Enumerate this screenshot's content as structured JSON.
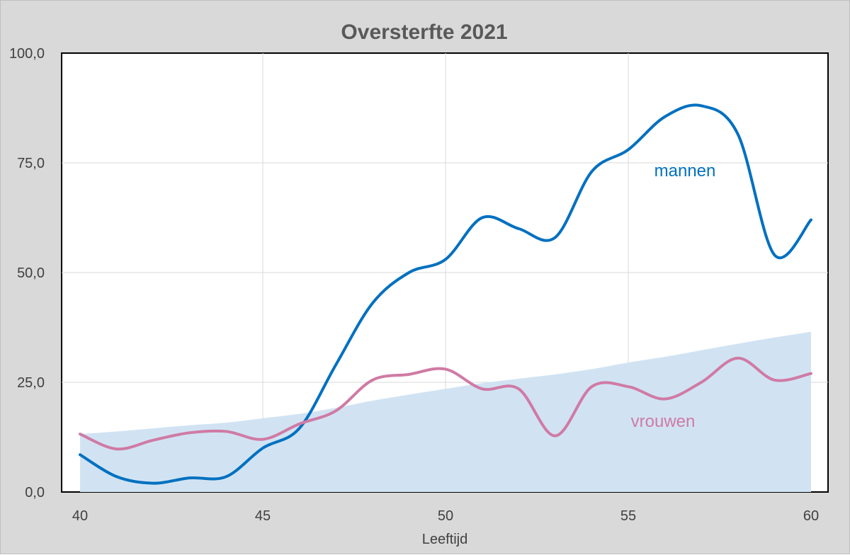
{
  "chart_data": {
    "type": "line",
    "title": "Oversterfte 2021",
    "xlabel": "Leeftijd",
    "ylabel": "",
    "xlim": [
      40,
      60
    ],
    "ylim": [
      0,
      100
    ],
    "x_ticks": [
      "40",
      "45",
      "50",
      "55",
      "60"
    ],
    "x_tick_values": [
      40,
      45,
      50,
      55,
      60
    ],
    "y_ticks": [
      "0,0",
      "25,0",
      "50,0",
      "75,0",
      "100,0"
    ],
    "y_tick_values": [
      0,
      25,
      50,
      75,
      100
    ],
    "grid": true,
    "area": {
      "x": [
        40,
        41,
        42,
        43,
        44,
        45,
        46,
        47,
        48,
        49,
        50,
        51,
        52,
        53,
        54,
        55,
        56,
        57,
        58,
        59,
        60
      ],
      "values": [
        13.2,
        13.8,
        14.5,
        15.2,
        15.8,
        16.8,
        17.8,
        19.2,
        20.8,
        22.2,
        23.5,
        24.8,
        25.8,
        26.8,
        28.0,
        29.5,
        30.8,
        32.3,
        33.8,
        35.2,
        36.5
      ]
    },
    "series": [
      {
        "name": "mannen",
        "color": "#0070c0",
        "x": [
          40,
          41,
          42,
          43,
          44,
          45,
          46,
          47,
          48,
          49,
          50,
          51,
          52,
          53,
          54,
          55,
          56,
          57,
          58,
          59,
          60
        ],
        "values": [
          8.5,
          3.5,
          2.0,
          3.2,
          3.5,
          10.0,
          14.5,
          29.0,
          43.0,
          50.0,
          53.0,
          62.5,
          60.0,
          58.0,
          73.0,
          78.0,
          85.5,
          88.0,
          81.5,
          54.0,
          62.0
        ]
      },
      {
        "name": "vrouwen",
        "color": "#d07aa5",
        "x": [
          40,
          41,
          42,
          43,
          44,
          45,
          46,
          47,
          48,
          49,
          50,
          51,
          52,
          53,
          54,
          55,
          56,
          57,
          58,
          59,
          60
        ],
        "values": [
          13.2,
          9.8,
          11.8,
          13.5,
          13.8,
          12.0,
          15.5,
          18.5,
          25.5,
          26.8,
          28.0,
          23.5,
          23.5,
          12.8,
          24.0,
          24.0,
          21.2,
          25.0,
          30.5,
          25.5,
          27.0
        ]
      }
    ],
    "colors": {
      "area": "#d1e3f3",
      "background": "#d9d9d9",
      "plot": "#ffffff",
      "grid": "#d9d9d9",
      "axis_text": "#404040",
      "title": "#595959"
    }
  }
}
